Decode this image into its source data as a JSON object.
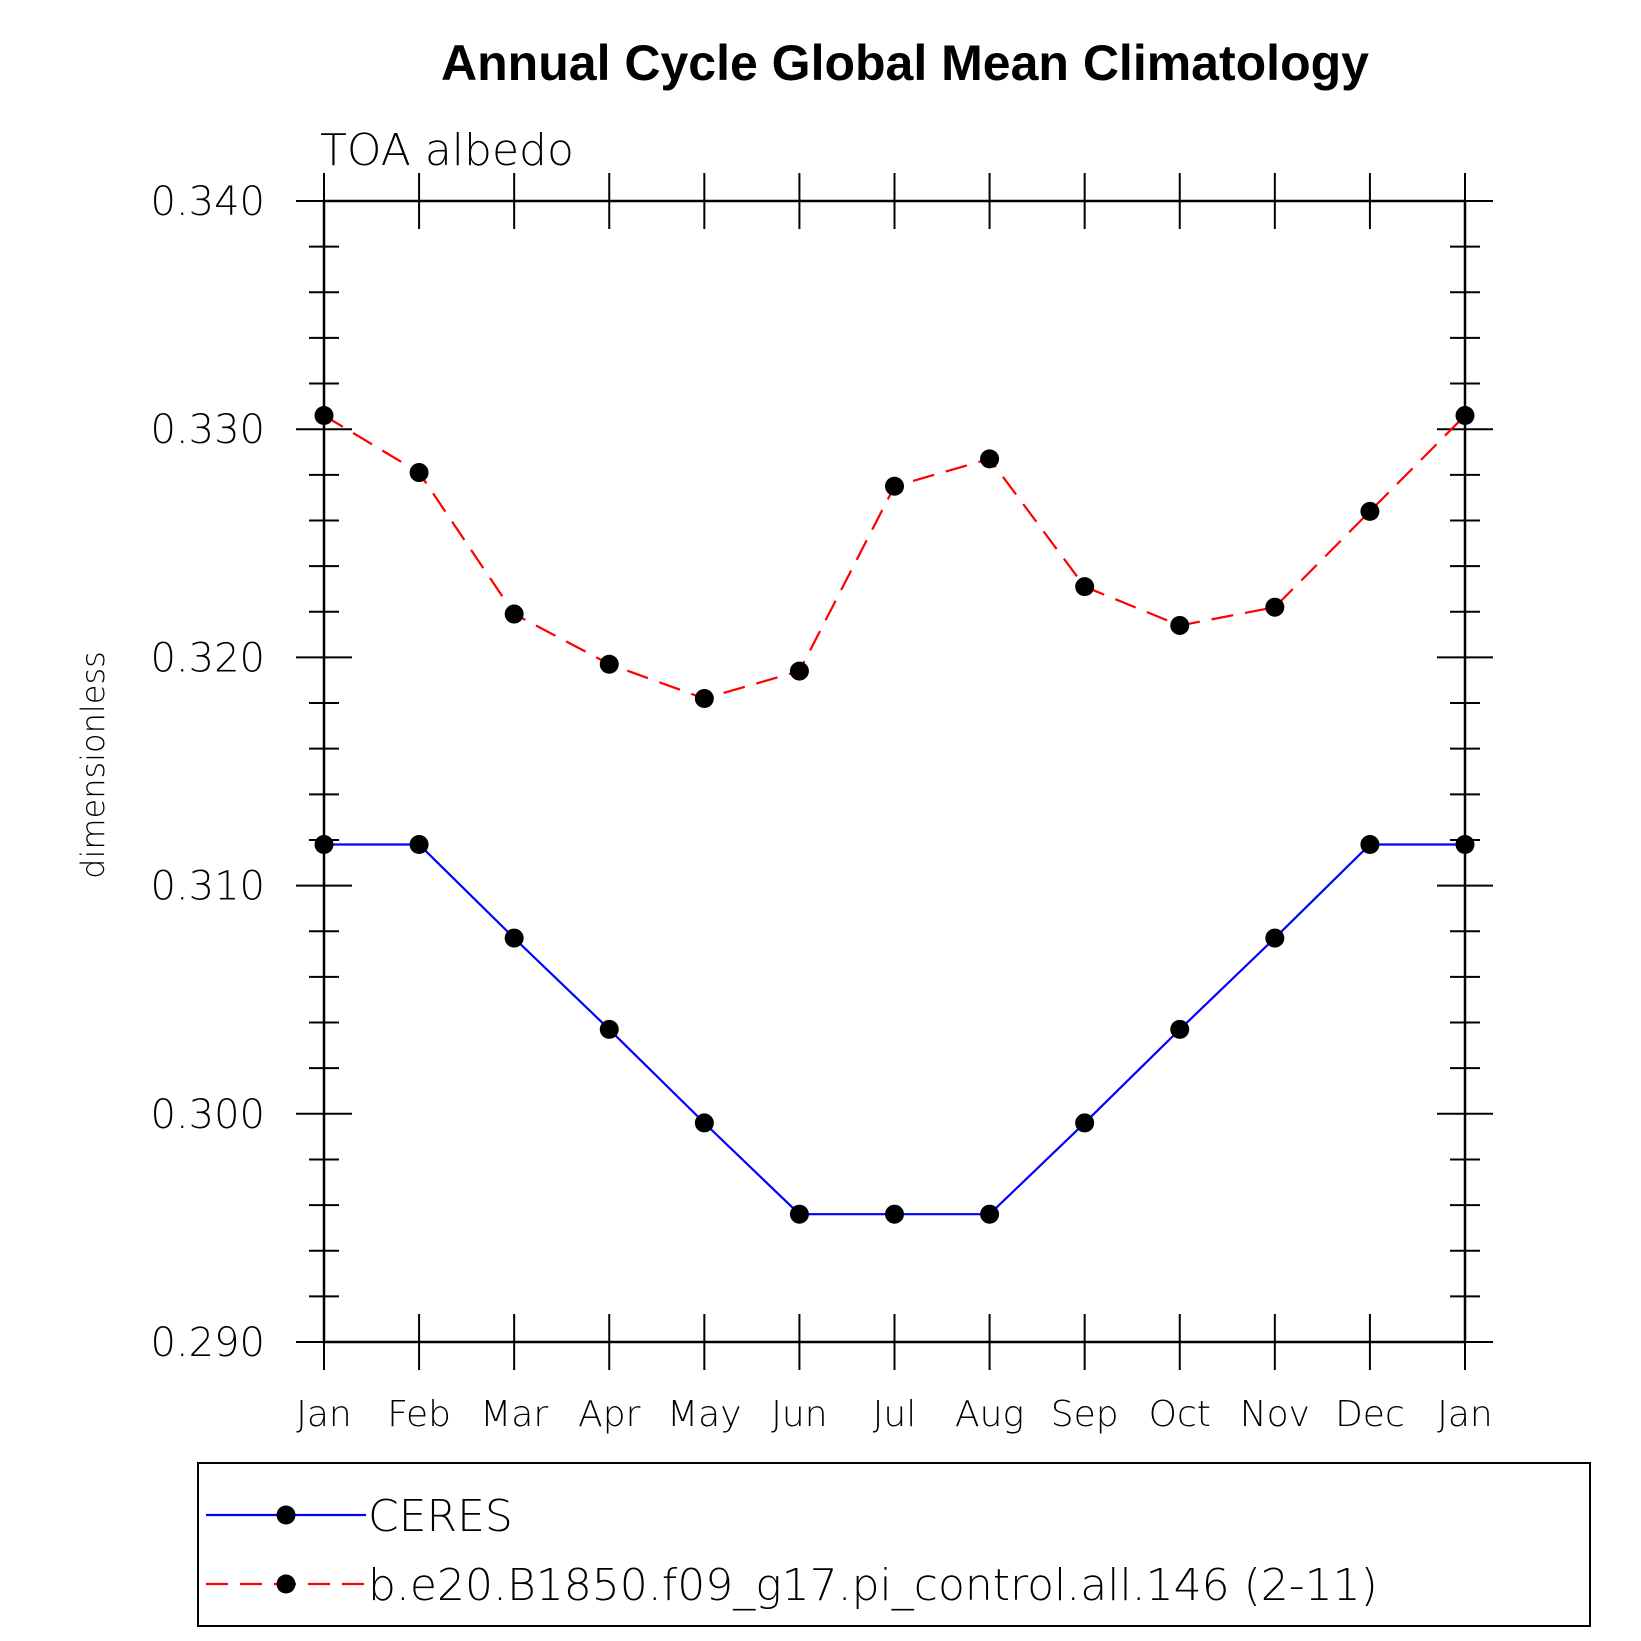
{
  "chart_data": {
    "type": "line",
    "title": "Annual Cycle Global Mean Climatology",
    "subtitle": "TOA albedo",
    "ylabel": "dimensionless",
    "xlabel": "",
    "ylim": [
      0.29,
      0.34
    ],
    "yticks": [
      "0.290",
      "0.300",
      "0.310",
      "0.320",
      "0.330",
      "0.340"
    ],
    "categories": [
      "Jan",
      "Feb",
      "Mar",
      "Apr",
      "May",
      "Jun",
      "Jul",
      "Aug",
      "Sep",
      "Oct",
      "Nov",
      "Dec",
      "Jan"
    ],
    "grid": false,
    "legend_position": "bottom",
    "series": [
      {
        "name": "CERES",
        "color": "#0000ff",
        "dash": "solid",
        "values": [
          0.3118,
          0.3118,
          0.3077,
          0.3037,
          0.2996,
          0.2956,
          0.2956,
          0.2956,
          0.2996,
          0.3037,
          0.3077,
          0.3118,
          0.3118
        ]
      },
      {
        "name": "b.e20.B1850.f09_g17.pi_control.all.146 (2-11)",
        "color": "#ff0000",
        "dash": "dashed",
        "values": [
          0.3306,
          0.3281,
          0.3219,
          0.3197,
          0.3182,
          0.3194,
          0.3275,
          0.3287,
          0.3231,
          0.3214,
          0.3222,
          0.3264,
          0.3306
        ]
      }
    ]
  }
}
